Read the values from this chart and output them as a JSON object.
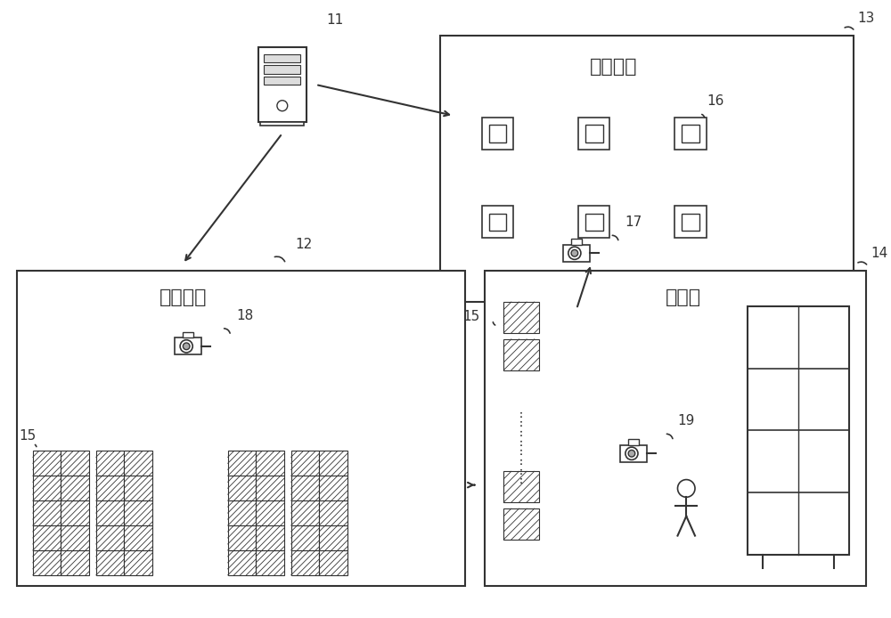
{
  "bg_color": "#ffffff",
  "line_color": "#333333",
  "charging_label": "充电区域",
  "charging_id": "13",
  "storage_label": "仓储区域",
  "storage_id": "12",
  "workstation_label": "工作站",
  "workstation_id": "14",
  "server_id": "11",
  "cam17_id": "17",
  "cam18_id": "18",
  "cam19_id": "19",
  "robot_id_storage": "15",
  "robot_id_workstation": "15"
}
